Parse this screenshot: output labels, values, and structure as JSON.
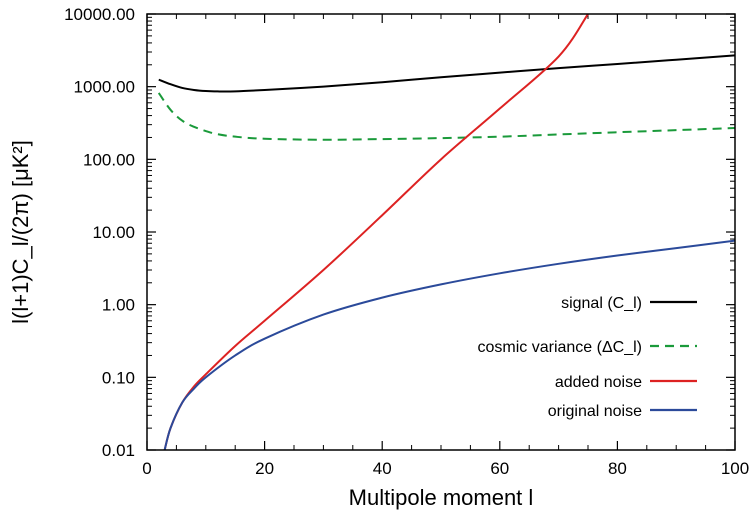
{
  "chart_data": {
    "type": "line",
    "xlabel": "Multipole moment  l",
    "ylabel": "l(l+1)C_l/(2π) [μK²]",
    "xlim": [
      0,
      100
    ],
    "ylim": [
      0.01,
      10000
    ],
    "yscale": "log",
    "x_ticks": [
      "0",
      "20",
      "40",
      "60",
      "80",
      "100"
    ],
    "y_ticks": [
      "0.01",
      "0.10",
      "1.00",
      "10.00",
      "100.00",
      "1000.00",
      "10000.00"
    ],
    "legend_position": "bottom-right",
    "series": [
      {
        "name": "signal (C_l)",
        "color": "#000000",
        "dash": "solid",
        "x": [
          2,
          4,
          6,
          8,
          10,
          12,
          15,
          20,
          30,
          40,
          50,
          60,
          70,
          80,
          90,
          100
        ],
        "y": [
          1250,
          1080,
          960,
          900,
          870,
          860,
          862,
          900,
          1000,
          1150,
          1350,
          1560,
          1800,
          2050,
          2350,
          2700
        ]
      },
      {
        "name": "cosmic variance (ΔC_l)",
        "color": "#1a9a3a",
        "dash": "dashed",
        "x": [
          2,
          4,
          6,
          8,
          10,
          12,
          15,
          20,
          30,
          40,
          50,
          60,
          70,
          80,
          90,
          100
        ],
        "y": [
          820,
          480,
          340,
          280,
          245,
          222,
          205,
          192,
          186,
          190,
          196,
          205,
          220,
          236,
          252,
          270
        ]
      },
      {
        "name": "added noise",
        "color": "#dd2222",
        "dash": "solid",
        "x": [
          3,
          4,
          6,
          8,
          10,
          15,
          20,
          30,
          40,
          50,
          60,
          70,
          75
        ],
        "y": [
          0.01,
          0.02,
          0.045,
          0.075,
          0.11,
          0.27,
          0.6,
          3.0,
          17,
          100,
          500,
          2600,
          10000
        ]
      },
      {
        "name": "original noise",
        "color": "#2b4a9a",
        "dash": "solid",
        "x": [
          3,
          4,
          6,
          8,
          10,
          15,
          20,
          30,
          40,
          50,
          60,
          70,
          80,
          90,
          100
        ],
        "y": [
          0.01,
          0.02,
          0.045,
          0.07,
          0.1,
          0.2,
          0.34,
          0.73,
          1.25,
          1.9,
          2.7,
          3.65,
          4.75,
          6.0,
          7.6
        ]
      }
    ]
  }
}
